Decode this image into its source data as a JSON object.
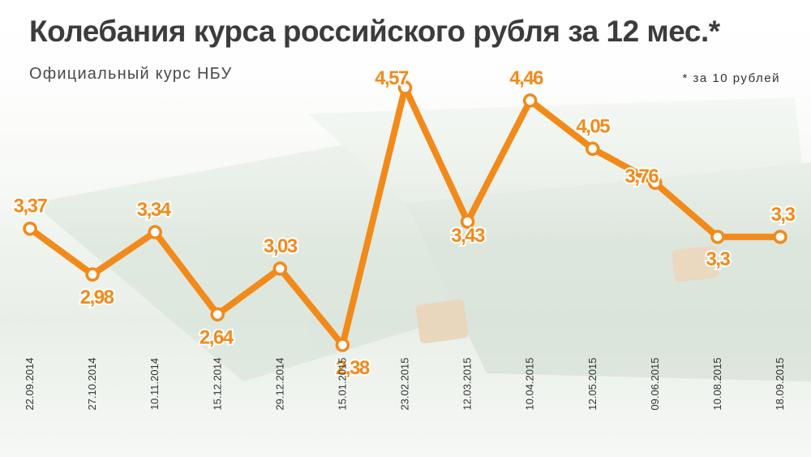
{
  "title": "Колебания курса российского рубля за 12 мес.*",
  "subtitle": "Официальный курс НБУ",
  "note": "* за 10 рублей",
  "colors": {
    "line": "#f28a1a",
    "marker_fill": "#ffffff",
    "title": "#3c3c3c"
  },
  "chart_data": {
    "type": "line",
    "title": "Колебания курса российского рубля за 12 мес.*",
    "subtitle": "Официальный курс НБУ",
    "note": "* за 10 рублей",
    "categories": [
      "22.09.2014",
      "27.10.2014",
      "10.11.2014",
      "15.12.2014",
      "29.12.2014",
      "15.01.2015",
      "23.02.2015",
      "12.03.2015",
      "10.04.2015",
      "12.05.2015",
      "09.06.2015",
      "10.08.2015",
      "18.09.2015"
    ],
    "series": [
      {
        "values": [
          3.37,
          2.98,
          3.34,
          2.64,
          3.03,
          2.38,
          4.57,
          3.43,
          4.46,
          4.05,
          3.76,
          3.3,
          3.3
        ],
        "labels": [
          "3,37",
          "2,98",
          "3,34",
          "2,64",
          "3,03",
          "2,38",
          "4,57",
          "3,43",
          "4,46",
          "4,05",
          "3,76",
          "3,3",
          "3,3"
        ]
      }
    ],
    "xlabel": "",
    "ylabel": "",
    "grid": false,
    "axes_visible": false,
    "x_tick_rotation": "vertical"
  }
}
